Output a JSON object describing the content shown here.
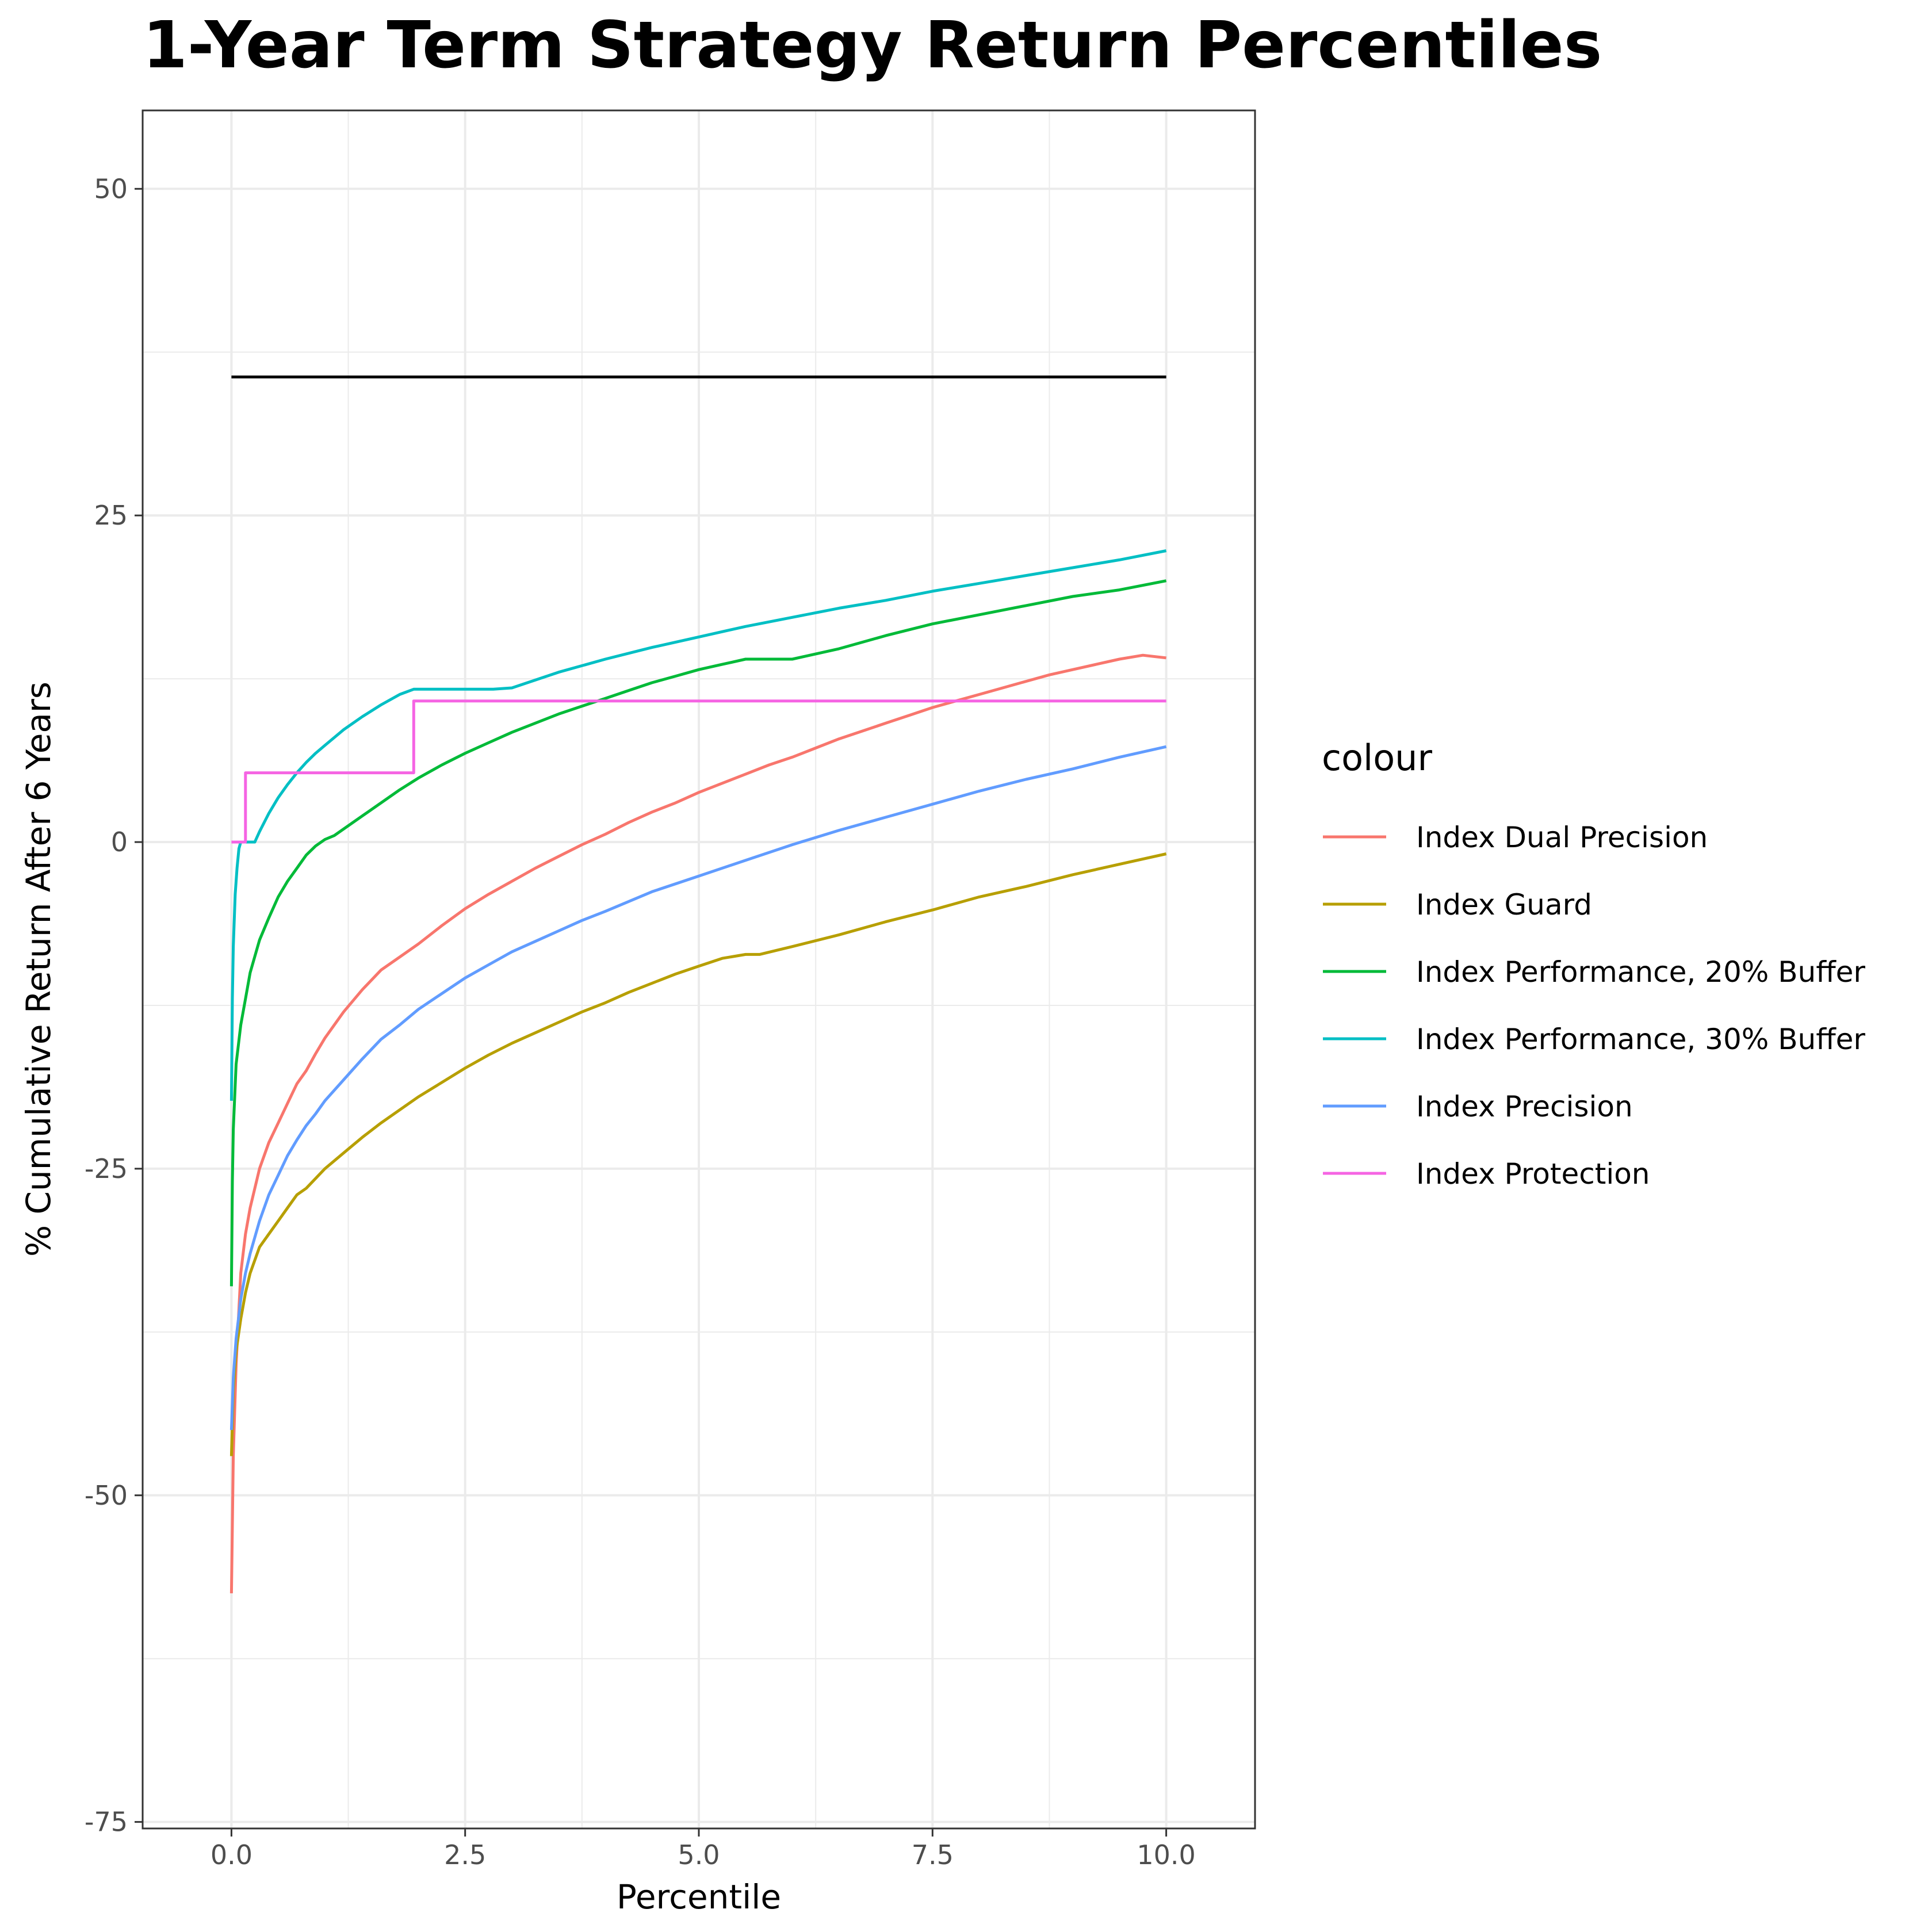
{
  "chart_data": {
    "type": "line",
    "title": "1-Year Term Strategy Return Percentiles",
    "xlabel": "Percentile",
    "ylabel": "% Cumulative Return After 6 Years",
    "xlim": [
      -0.95,
      10.95
    ],
    "ylim": [
      -75.5,
      56
    ],
    "x_ticks": [
      0,
      2.5,
      5,
      7.5,
      10
    ],
    "x_tick_labels": [
      "0.0",
      "2.5",
      "5.0",
      "7.5",
      "10.0"
    ],
    "y_ticks": [
      50,
      25,
      0,
      -25,
      -50,
      -75
    ],
    "y_tick_labels": [
      "50",
      "25",
      "0",
      "-25",
      "-50",
      "-75"
    ],
    "grid": true,
    "legend": {
      "title": "colour",
      "position": "right"
    },
    "reference_line": {
      "color": "#000000",
      "x": [
        0,
        10
      ],
      "y": [
        35.6,
        35.6
      ]
    },
    "series": [
      {
        "name": "Index Dual Precision",
        "color": "#F8766D",
        "step": false,
        "x": [
          0,
          0.02,
          0.05,
          0.1,
          0.15,
          0.2,
          0.3,
          0.4,
          0.5,
          0.6,
          0.7,
          0.8,
          0.9,
          1.0,
          1.2,
          1.4,
          1.6,
          1.8,
          2.0,
          2.25,
          2.5,
          2.75,
          3.0,
          3.25,
          3.5,
          3.75,
          4.0,
          4.25,
          4.5,
          4.75,
          5.0,
          5.25,
          5.5,
          5.75,
          6.0,
          6.25,
          6.5,
          6.75,
          7.0,
          7.25,
          7.5,
          7.75,
          8.0,
          8.25,
          8.5,
          8.75,
          9.0,
          9.25,
          9.5,
          9.75,
          10.0
        ],
        "y": [
          -57.5,
          -47,
          -40,
          -33,
          -30,
          -28,
          -25,
          -23,
          -21.5,
          -20,
          -18.5,
          -17.5,
          -16.2,
          -15,
          -13,
          -11.3,
          -9.8,
          -8.8,
          -7.8,
          -6.4,
          -5.1,
          -4,
          -3,
          -2,
          -1.1,
          -0.2,
          0.6,
          1.5,
          2.3,
          3.0,
          3.8,
          4.5,
          5.2,
          5.9,
          6.5,
          7.2,
          7.9,
          8.5,
          9.1,
          9.7,
          10.3,
          10.8,
          11.3,
          11.8,
          12.3,
          12.8,
          13.2,
          13.6,
          14.0,
          14.3,
          14.1
        ]
      },
      {
        "name": "Index Guard",
        "color": "#B79F00",
        "step": false,
        "x": [
          0,
          0.02,
          0.05,
          0.1,
          0.15,
          0.2,
          0.3,
          0.4,
          0.5,
          0.6,
          0.7,
          0.8,
          1.0,
          1.2,
          1.4,
          1.6,
          1.8,
          2.0,
          2.25,
          2.5,
          2.75,
          3.0,
          3.25,
          3.5,
          3.75,
          4.0,
          4.25,
          4.5,
          4.75,
          5.0,
          5.25,
          5.5,
          5.65,
          6.0,
          6.5,
          7.0,
          7.5,
          8.0,
          8.5,
          9.0,
          9.5,
          10.0
        ],
        "y": [
          -47,
          -42,
          -39,
          -36.5,
          -34.5,
          -33,
          -31,
          -30,
          -29,
          -28,
          -27,
          -26.5,
          -25,
          -23.8,
          -22.6,
          -21.5,
          -20.5,
          -19.5,
          -18.4,
          -17.3,
          -16.3,
          -15.4,
          -14.6,
          -13.8,
          -13.0,
          -12.3,
          -11.5,
          -10.8,
          -10.1,
          -9.5,
          -8.9,
          -8.6,
          -8.6,
          -8.0,
          -7.1,
          -6.1,
          -5.2,
          -4.2,
          -3.4,
          -2.5,
          -1.7,
          -0.9
        ]
      },
      {
        "name": "Index Performance, 20% Buffer",
        "color": "#00BA38",
        "step": false,
        "x": [
          0,
          0.01,
          0.02,
          0.05,
          0.1,
          0.15,
          0.2,
          0.3,
          0.4,
          0.5,
          0.6,
          0.7,
          0.8,
          0.9,
          1.0,
          1.1,
          1.2,
          1.4,
          1.6,
          1.8,
          2.0,
          2.25,
          2.5,
          2.75,
          3.0,
          3.25,
          3.5,
          3.75,
          4.0,
          4.25,
          4.5,
          4.75,
          5.0,
          5.25,
          5.5,
          6.0,
          6.5,
          7.0,
          7.5,
          8.0,
          8.5,
          9.0,
          9.5,
          10.0
        ],
        "y": [
          -34,
          -26,
          -22,
          -17,
          -14,
          -12,
          -10,
          -7.5,
          -5.8,
          -4.2,
          -3.0,
          -2.0,
          -1.0,
          -0.3,
          0.2,
          0.5,
          1.0,
          2.0,
          3.0,
          4.0,
          4.9,
          5.9,
          6.8,
          7.6,
          8.4,
          9.1,
          9.8,
          10.4,
          11.0,
          11.6,
          12.2,
          12.7,
          13.2,
          13.6,
          14.0,
          14.0,
          14.8,
          15.8,
          16.7,
          17.4,
          18.1,
          18.8,
          19.3,
          20.0
        ]
      },
      {
        "name": "Index Performance, 30% Buffer",
        "color": "#00BFC4",
        "step": false,
        "x": [
          0,
          0.01,
          0.02,
          0.04,
          0.06,
          0.08,
          0.1,
          0.12,
          0.15,
          0.25,
          0.3,
          0.4,
          0.5,
          0.6,
          0.7,
          0.8,
          0.9,
          1.0,
          1.2,
          1.4,
          1.6,
          1.8,
          1.95,
          2.2,
          2.5,
          2.8,
          3.0,
          3.25,
          3.5,
          3.75,
          4.0,
          4.5,
          5.0,
          5.5,
          6.0,
          6.5,
          7.0,
          7.5,
          8.0,
          8.5,
          9.0,
          9.5,
          10.0
        ],
        "y": [
          -19.8,
          -12,
          -8,
          -4,
          -2,
          -0.5,
          0,
          0,
          0,
          0,
          0.8,
          2.2,
          3.4,
          4.4,
          5.3,
          6.1,
          6.8,
          7.4,
          8.6,
          9.6,
          10.5,
          11.3,
          11.7,
          11.7,
          11.7,
          11.7,
          11.8,
          12.4,
          13.0,
          13.5,
          14.0,
          14.9,
          15.7,
          16.5,
          17.2,
          17.9,
          18.5,
          19.2,
          19.8,
          20.4,
          21.0,
          21.6,
          22.3
        ]
      },
      {
        "name": "Index Precision",
        "color": "#619CFF",
        "step": false,
        "x": [
          0,
          0.02,
          0.05,
          0.1,
          0.15,
          0.2,
          0.3,
          0.4,
          0.5,
          0.6,
          0.7,
          0.8,
          0.9,
          1.0,
          1.2,
          1.4,
          1.6,
          1.8,
          2.0,
          2.25,
          2.5,
          2.75,
          3.0,
          3.25,
          3.5,
          3.75,
          4.0,
          4.5,
          5.0,
          5.5,
          6.0,
          6.5,
          7.0,
          7.5,
          8.0,
          8.5,
          9.0,
          9.5,
          10.0
        ],
        "y": [
          -45,
          -41,
          -38,
          -35,
          -33,
          -31.5,
          -29,
          -27,
          -25.5,
          -24,
          -22.8,
          -21.7,
          -20.8,
          -19.8,
          -18.2,
          -16.6,
          -15.1,
          -14.0,
          -12.8,
          -11.6,
          -10.4,
          -9.4,
          -8.4,
          -7.6,
          -6.8,
          -6.0,
          -5.3,
          -3.8,
          -2.6,
          -1.4,
          -0.2,
          0.9,
          1.9,
          2.9,
          3.9,
          4.8,
          5.6,
          6.5,
          7.3
        ]
      },
      {
        "name": "Index Protection",
        "color": "#F564E3",
        "step": true,
        "x": [
          0,
          0.15,
          0.15,
          1.95,
          1.95,
          10
        ],
        "y": [
          0,
          0,
          5.3,
          5.3,
          10.8,
          10.8
        ]
      }
    ]
  }
}
